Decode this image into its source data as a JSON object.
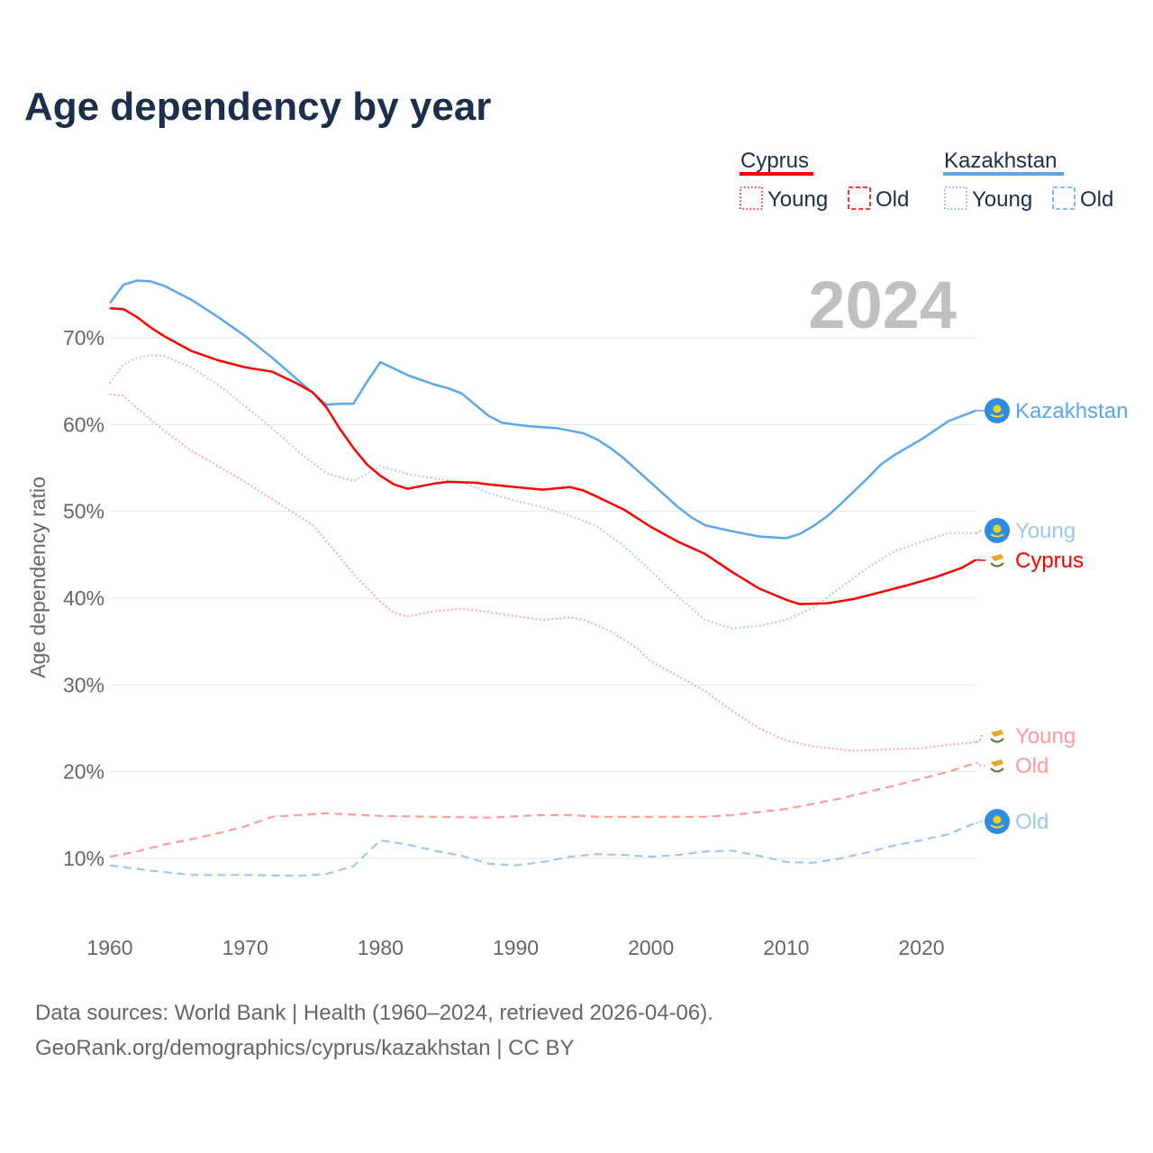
{
  "chart_data": {
    "type": "line",
    "title": "Age dependency by year",
    "year_watermark": "2024",
    "ylabel": "Age dependency ratio",
    "xlabel": "",
    "xlim": [
      1960,
      2024
    ],
    "ylim": [
      3,
      76
    ],
    "xticks": [
      1960,
      1970,
      1980,
      1990,
      2000,
      2010,
      2020
    ],
    "xtick_labels": [
      "1960",
      "1970",
      "1980",
      "1990",
      "2000",
      "2010",
      "2020"
    ],
    "yticks": [
      10,
      20,
      30,
      40,
      50,
      60,
      70
    ],
    "ytick_labels": [
      "10%",
      "20%",
      "30%",
      "40%",
      "50%",
      "60%",
      "70%"
    ],
    "grid": true,
    "legend": {
      "placement": "top-right",
      "groups": [
        {
          "country": "Cyprus",
          "color": "#ff0000",
          "items": [
            "Young",
            "Old"
          ]
        },
        {
          "country": "Kazakhstan",
          "color": "#5ba6ea",
          "items": [
            "Young",
            "Old"
          ]
        }
      ]
    },
    "series": [
      {
        "name": "Kazakhstan",
        "label": "Kazakhstan",
        "country": "Kazakhstan",
        "kind": "total",
        "style": "solid",
        "color": "#5ba6ea",
        "x": [
          1960,
          1961,
          1962,
          1963,
          1964,
          1966,
          1968,
          1970,
          1972,
          1974,
          1976,
          1977,
          1978,
          1979,
          1980,
          1982,
          1984,
          1985,
          1986,
          1988,
          1989,
          1991,
          1993,
          1995,
          1996,
          1997,
          1998,
          2000,
          2002,
          2003,
          2004,
          2006,
          2008,
          2010,
          2011,
          2012,
          2013,
          2014,
          2016,
          2017,
          2018,
          2020,
          2022,
          2024
        ],
        "y": [
          74.0,
          76.1,
          76.6,
          76.5,
          76.0,
          74.4,
          72.4,
          70.2,
          67.7,
          65.0,
          62.3,
          62.4,
          62.4,
          64.9,
          67.2,
          65.7,
          64.6,
          64.2,
          63.6,
          61.0,
          60.2,
          59.8,
          59.6,
          59.0,
          58.3,
          57.3,
          56.1,
          53.3,
          50.5,
          49.3,
          48.4,
          47.7,
          47.1,
          46.9,
          47.4,
          48.3,
          49.4,
          50.8,
          53.8,
          55.4,
          56.5,
          58.3,
          60.4,
          61.6
        ]
      },
      {
        "name": "Kazakhstan Young",
        "label": "Young",
        "country": "Kazakhstan",
        "kind": "young",
        "style": "dotted",
        "color": "#9fc6ee",
        "x": [
          1960,
          1961,
          1962,
          1963,
          1964,
          1966,
          1968,
          1970,
          1972,
          1974,
          1976,
          1978,
          1980,
          1982,
          1984,
          1986,
          1988,
          1990,
          1992,
          1994,
          1996,
          1998,
          2000,
          2002,
          2004,
          2006,
          2008,
          2010,
          2012,
          2014,
          2016,
          2018,
          2020,
          2022,
          2024
        ],
        "y": [
          64.8,
          66.9,
          67.7,
          68.0,
          67.9,
          66.6,
          64.6,
          62.1,
          59.6,
          56.8,
          54.4,
          53.5,
          55.2,
          54.3,
          53.8,
          53.4,
          52.1,
          51.2,
          50.5,
          49.5,
          48.3,
          46.0,
          43.1,
          40.2,
          37.5,
          36.5,
          36.8,
          37.5,
          38.9,
          41.2,
          43.5,
          45.4,
          46.5,
          47.5,
          47.5
        ]
      },
      {
        "name": "Cyprus",
        "label": "Cyprus",
        "country": "Cyprus",
        "kind": "total",
        "style": "solid",
        "color": "#ff0000",
        "x": [
          1960,
          1961,
          1962,
          1963,
          1964,
          1966,
          1968,
          1970,
          1972,
          1974,
          1975,
          1976,
          1977,
          1978,
          1979,
          1980,
          1981,
          1982,
          1983,
          1984,
          1985,
          1987,
          1988,
          1990,
          1992,
          1994,
          1995,
          1996,
          1998,
          2000,
          2002,
          2004,
          2006,
          2008,
          2010,
          2011,
          2013,
          2015,
          2017,
          2019,
          2021,
          2023,
          2024
        ],
        "y": [
          73.4,
          73.3,
          72.4,
          71.2,
          70.2,
          68.5,
          67.4,
          66.6,
          66.1,
          64.6,
          63.7,
          62.0,
          59.5,
          57.3,
          55.4,
          54.1,
          53.1,
          52.6,
          52.9,
          53.2,
          53.4,
          53.3,
          53.1,
          52.8,
          52.5,
          52.8,
          52.4,
          51.7,
          50.2,
          48.2,
          46.5,
          45.1,
          43.0,
          41.1,
          39.8,
          39.3,
          39.4,
          39.9,
          40.7,
          41.5,
          42.4,
          43.5,
          44.4
        ]
      },
      {
        "name": "Cyprus Young",
        "label": "Young",
        "country": "Cyprus",
        "kind": "young",
        "style": "dotted",
        "color": "#ff9a9a",
        "x": [
          1960,
          1961,
          1962,
          1964,
          1966,
          1968,
          1970,
          1972,
          1974,
          1975,
          1976,
          1978,
          1980,
          1981,
          1982,
          1984,
          1986,
          1988,
          1990,
          1992,
          1994,
          1995,
          1997,
          1999,
          2000,
          2002,
          2004,
          2006,
          2008,
          2010,
          2012,
          2015,
          2018,
          2020,
          2022,
          2024
        ],
        "y": [
          63.5,
          63.3,
          61.9,
          59.3,
          57.0,
          55.2,
          53.4,
          51.4,
          49.4,
          48.4,
          46.6,
          42.8,
          39.6,
          38.3,
          37.9,
          38.5,
          38.8,
          38.4,
          37.9,
          37.5,
          37.8,
          37.5,
          36.2,
          34.2,
          32.7,
          31.0,
          29.3,
          27.0,
          25.0,
          23.6,
          22.9,
          22.4,
          22.6,
          22.7,
          23.1,
          23.4
        ]
      },
      {
        "name": "Cyprus Old",
        "label": "Old",
        "country": "Cyprus",
        "kind": "old",
        "style": "dashed",
        "color": "#ff9a9a",
        "x": [
          1960,
          1962,
          1964,
          1966,
          1968,
          1970,
          1972,
          1974,
          1976,
          1980,
          1984,
          1988,
          1992,
          1994,
          1996,
          2000,
          2004,
          2006,
          2010,
          2014,
          2018,
          2022,
          2024
        ],
        "y": [
          10.2,
          10.8,
          11.6,
          12.2,
          12.9,
          13.7,
          14.8,
          15.0,
          15.2,
          14.9,
          14.8,
          14.7,
          15.0,
          15.0,
          14.8,
          14.8,
          14.8,
          15.0,
          15.7,
          16.9,
          18.4,
          20.0,
          21.0
        ]
      },
      {
        "name": "Kazakhstan Old",
        "label": "Old",
        "country": "Kazakhstan",
        "kind": "old",
        "style": "dashed",
        "color": "#9fc6ee",
        "x": [
          1960,
          1963,
          1966,
          1970,
          1974,
          1976,
          1978,
          1980,
          1982,
          1984,
          1986,
          1988,
          1990,
          1992,
          1994,
          1996,
          1998,
          2000,
          2002,
          2004,
          2006,
          2008,
          2010,
          2012,
          2014,
          2016,
          2018,
          2020,
          2022,
          2024
        ],
        "y": [
          9.2,
          8.6,
          8.1,
          8.1,
          8.0,
          8.2,
          9.1,
          12.1,
          11.6,
          10.9,
          10.3,
          9.4,
          9.2,
          9.6,
          10.2,
          10.5,
          10.4,
          10.2,
          10.4,
          10.8,
          10.9,
          10.3,
          9.6,
          9.5,
          10.0,
          10.7,
          11.5,
          12.1,
          12.8,
          14.1
        ]
      }
    ]
  },
  "footer": {
    "line1": "Data sources: World Bank | Health (1960–2024, retrieved 2026-04-06).",
    "line2": "GeoRank.org/demographics/cyprus/kazakhstan | CC BY"
  },
  "colors": {
    "title": "#1b2e4b",
    "muted": "#666666",
    "grid": "#e6e6e6",
    "watermark": "#c0c0c0"
  }
}
